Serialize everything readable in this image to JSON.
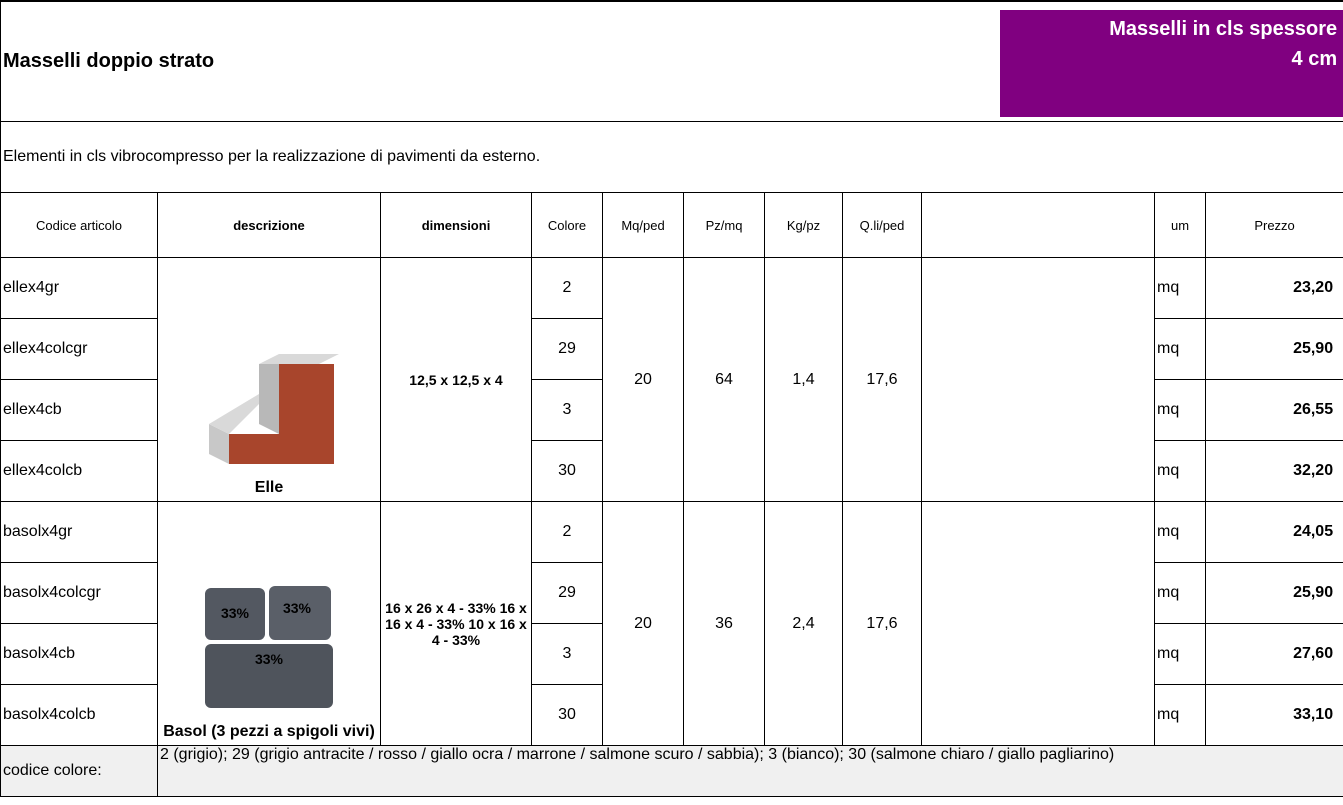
{
  "header": {
    "title": "Masselli doppio strato",
    "badge": [
      "Masselli in cls spessore",
      "4 cm"
    ]
  },
  "intro": "Elementi in cls vibrocompresso per la realizzazione di pavimenti da esterno.",
  "table": {
    "columns": [
      "Codice articolo",
      "descrizione",
      "dimensioni",
      "Colore",
      "Mq/ped",
      "Pz/mq",
      "Kg/pz",
      "Q.li/ped",
      "um",
      "Prezzo"
    ],
    "groups": [
      {
        "name": "Elle",
        "dimensions": "12,5 x 12,5 x 4",
        "mq_ped": "20",
        "pz_mq": "64",
        "kg_pz": "1,4",
        "q_ped": "17,6",
        "rows": [
          {
            "code": "ellex4gr",
            "colore": "2",
            "um": "mq",
            "price": "23,20"
          },
          {
            "code": "ellex4colcgr",
            "colore": "29",
            "um": "mq",
            "price": "25,90"
          },
          {
            "code": "ellex4cb",
            "colore": "3",
            "um": "mq",
            "price": "26,55"
          },
          {
            "code": "ellex4colcb",
            "colore": "30",
            "um": "mq",
            "price": "32,20"
          }
        ]
      },
      {
        "name": "Basol (3 pezzi a spigoli vivi)",
        "dimensions": "16 x 26 x 4 - 33% 16 x 16 x 4 - 33% 10 x 16 x 4 - 33%",
        "image_labels": [
          "33%",
          "33%",
          "33%"
        ],
        "mq_ped": "20",
        "pz_mq": "36",
        "kg_pz": "2,4",
        "q_ped": "17,6",
        "rows": [
          {
            "code": "basolx4gr",
            "colore": "2",
            "um": "mq",
            "price": "24,05"
          },
          {
            "code": "basolx4colcgr",
            "colore": "29",
            "um": "mq",
            "price": "25,90"
          },
          {
            "code": "basolx4cb",
            "colore": "3",
            "um": "mq",
            "price": "27,60"
          },
          {
            "code": "basolx4colcb",
            "colore": "30",
            "um": "mq",
            "price": "33,10"
          }
        ]
      }
    ]
  },
  "footer": {
    "label": "codice colore:",
    "text": "2 (grigio); 29 (grigio antracite / rosso / giallo ocra / marrone / salmone scuro / sabbia); 3 (bianco); 30 (salmone chiaro / giallo pagliarino)"
  }
}
